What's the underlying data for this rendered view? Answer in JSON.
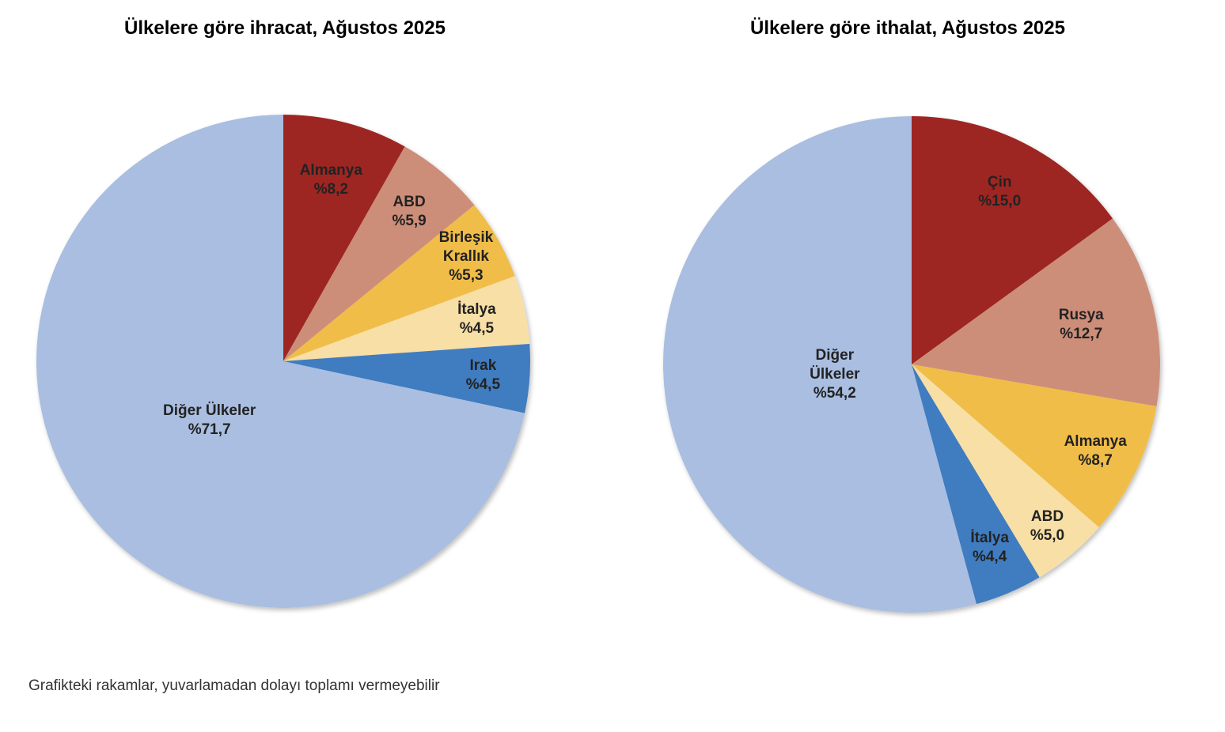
{
  "chart_data": [
    {
      "type": "pie",
      "title": "Ülkelere göre ihracat, Ağustos 2025",
      "slices": [
        {
          "label": "Almanya",
          "value_label": "%8,2",
          "value": 8.2,
          "color": "#9E2820"
        },
        {
          "label": "ABD",
          "value_label": "%5,9",
          "value": 5.9,
          "color": "#CD8E79"
        },
        {
          "label": "Birleşik Krallık",
          "value_label": "%5,3",
          "value": 5.3,
          "color": "#F0BD48"
        },
        {
          "label": "İtalya",
          "value_label": "%4,5",
          "value": 4.5,
          "color": "#F8DFA5"
        },
        {
          "label": "Irak",
          "value_label": "%4,5",
          "value": 4.5,
          "color": "#3F7CC0"
        },
        {
          "label": "Diğer Ülkeler",
          "value_label": "%71,7",
          "value": 71.7,
          "color": "#A9BEE0"
        }
      ]
    },
    {
      "type": "pie",
      "title": "Ülkelere göre ithalat, Ağustos 2025",
      "slices": [
        {
          "label": "Çin",
          "value_label": "%15,0",
          "value": 15.0,
          "color": "#9E2820"
        },
        {
          "label": "Rusya",
          "value_label": "%12,7",
          "value": 12.7,
          "color": "#CD8E79"
        },
        {
          "label": "Almanya",
          "value_label": "%8,7",
          "value": 8.7,
          "color": "#F0BD48"
        },
        {
          "label": "ABD",
          "value_label": "%5,0",
          "value": 5.0,
          "color": "#F8DFA5"
        },
        {
          "label": "İtalya",
          "value_label": "%4,4",
          "value": 4.4,
          "color": "#3F7CC0"
        },
        {
          "label": "Diğer Ülkeler",
          "value_label": "%54,2",
          "value": 54.2,
          "color": "#A9BEE0"
        }
      ]
    }
  ],
  "footnote": "Grafikteki rakamlar, yuvarlamadan dolayı toplamı vermeyebilir"
}
